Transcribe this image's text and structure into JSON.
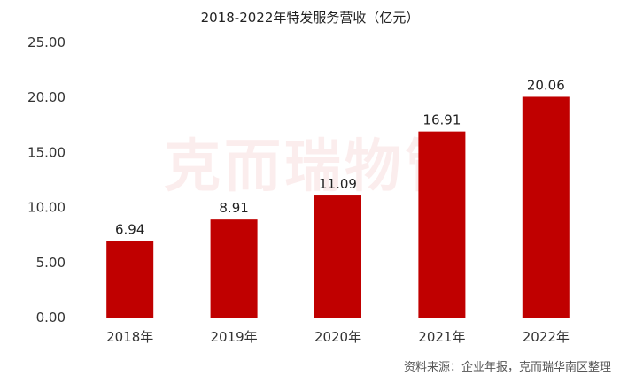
{
  "chart_data": {
    "type": "bar",
    "title": "2018-2022年特发服务营收（亿元）",
    "categories": [
      "2018年",
      "2019年",
      "2020年",
      "2021年",
      "2022年"
    ],
    "series": [
      {
        "values": [
          6.94,
          8.91,
          11.09,
          16.91,
          20.06
        ]
      }
    ],
    "data_labels": [
      "6.94",
      "8.91",
      "11.09",
      "16.91",
      "20.06"
    ],
    "yticks": [
      "0.00",
      "5.00",
      "10.00",
      "15.00",
      "20.00",
      "25.00"
    ],
    "ylim": [
      0,
      25
    ],
    "xlabel": "",
    "ylabel": "",
    "grid": false,
    "legend": "none",
    "bar_color": "#c00000"
  },
  "watermark": "克而瑞物管",
  "source_note": "资料来源：企业年报，克而瑞华南区整理"
}
